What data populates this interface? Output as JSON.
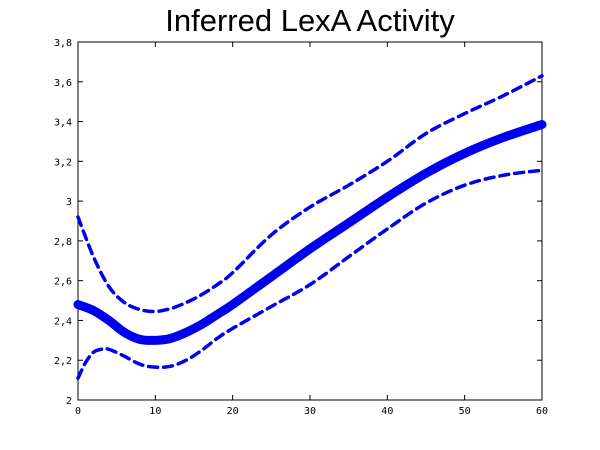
{
  "chart_data": {
    "type": "line",
    "title": "Inferred LexA Activity",
    "xlabel": "",
    "ylabel": "",
    "xlim": [
      0,
      60
    ],
    "ylim": [
      2,
      3.8
    ],
    "x_ticks": [
      0,
      10,
      20,
      30,
      40,
      50,
      60
    ],
    "y_ticks": [
      2,
      2.2,
      2.4,
      2.6,
      2.8,
      3,
      3.2,
      3.4,
      3.6,
      3.8
    ],
    "x_tick_labels": [
      "0",
      "10",
      "20",
      "30",
      "40",
      "50",
      "60"
    ],
    "y_tick_labels": [
      "2",
      "2,2",
      "2,4",
      "2,6",
      "2,8",
      "3",
      "3,2",
      "3,4",
      "3,6",
      "3,8"
    ],
    "grid": false,
    "legend": "none",
    "series": [
      {
        "style": "solid-thick",
        "color": "#0000ee",
        "x": [
          0,
          2,
          4,
          6,
          8,
          10,
          12,
          14,
          16,
          18,
          20,
          25,
          30,
          35,
          40,
          45,
          50,
          55,
          60
        ],
        "y": [
          2.48,
          2.45,
          2.4,
          2.34,
          2.305,
          2.3,
          2.31,
          2.34,
          2.38,
          2.43,
          2.48,
          2.62,
          2.76,
          2.89,
          3.02,
          3.14,
          3.24,
          3.32,
          3.385
        ]
      },
      {
        "style": "dashed",
        "color": "#0000ee",
        "x": [
          0,
          2,
          4,
          6,
          8,
          10,
          12,
          14,
          16,
          18,
          20,
          25,
          30,
          35,
          40,
          45,
          50,
          55,
          60
        ],
        "y": [
          2.92,
          2.72,
          2.57,
          2.49,
          2.455,
          2.445,
          2.46,
          2.49,
          2.53,
          2.58,
          2.64,
          2.83,
          2.97,
          3.08,
          3.2,
          3.34,
          3.44,
          3.53,
          3.63
        ]
      },
      {
        "style": "dashed",
        "color": "#0000ee",
        "x": [
          0,
          1,
          2,
          3,
          4,
          6,
          8,
          10,
          12,
          14,
          16,
          18,
          20,
          25,
          30,
          35,
          40,
          45,
          50,
          55,
          60
        ],
        "y": [
          2.11,
          2.19,
          2.24,
          2.255,
          2.255,
          2.22,
          2.18,
          2.165,
          2.17,
          2.2,
          2.25,
          2.31,
          2.36,
          2.47,
          2.58,
          2.72,
          2.86,
          2.99,
          3.08,
          3.13,
          3.155
        ]
      }
    ]
  }
}
